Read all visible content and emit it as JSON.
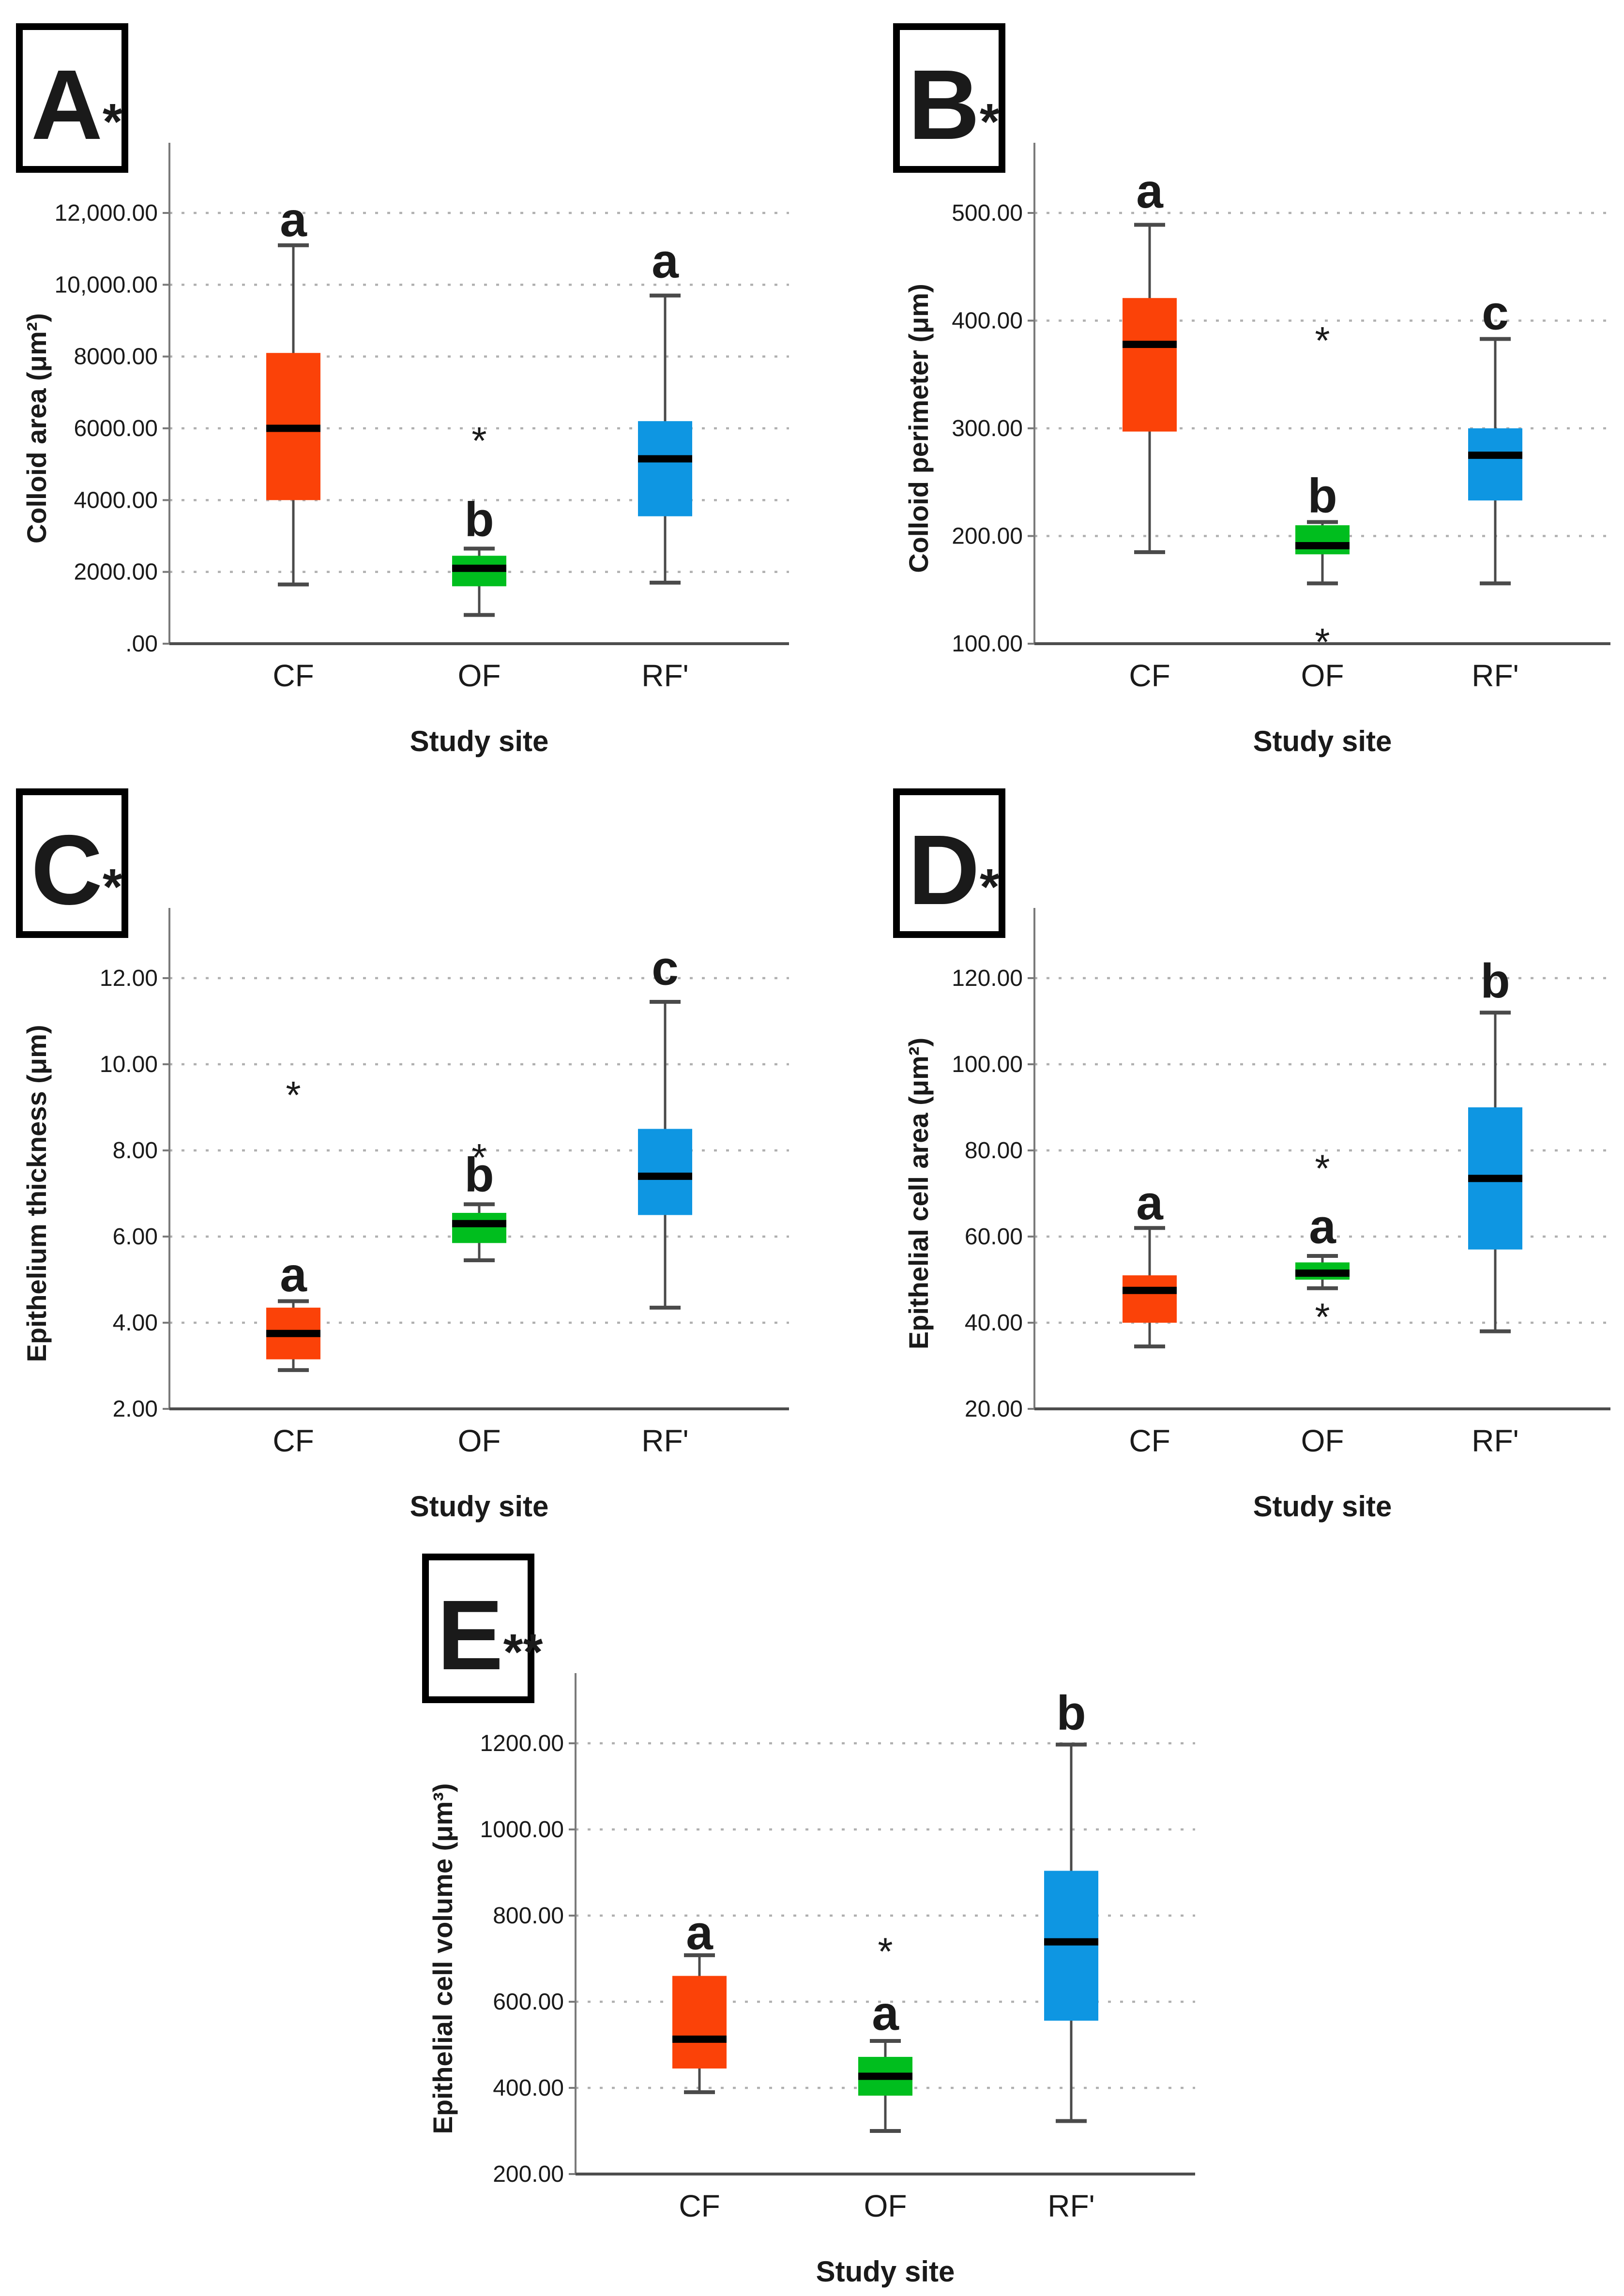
{
  "figure": {
    "background": "#ffffff",
    "x_axis_title": "Study site",
    "categories": [
      "CF",
      "OF",
      "RF'"
    ],
    "colors": {
      "cf_box": "#FB4208",
      "of_box": "#00BE1E",
      "rf_box": "#0E96E2",
      "median": "#000000",
      "whisker": "#4a4a4a",
      "gridline": "#b0b0b0",
      "y_axis": "#7a7a7a",
      "x_axis": "#4d4d4d",
      "text": "#1a1a1a"
    }
  },
  "chart_data": [
    {
      "type": "box",
      "panel": "A",
      "panel_label": "A",
      "significance": "*",
      "ylabel": "Colloid area (μm²)",
      "xlabel": "Study site",
      "ylim": [
        0,
        12000
      ],
      "grid": true,
      "ytick_values": [
        0,
        2000,
        4000,
        6000,
        8000,
        10000,
        12000
      ],
      "ytick_labels": [
        ".00",
        "2000.00",
        "4000.00",
        "6000.00",
        "8000.00",
        "10,000.00",
        "12,000.00"
      ],
      "boxes": [
        {
          "category": "CF",
          "color": "#FB4208",
          "letter": "a",
          "letter_y": 11350,
          "whisker_low": 1650,
          "q1": 4000,
          "median": 6000,
          "q3": 8100,
          "whisker_high": 11100,
          "outliers": []
        },
        {
          "category": "OF",
          "color": "#00BE1E",
          "letter": "b",
          "letter_y": 3000,
          "whisker_low": 800,
          "q1": 1600,
          "median": 2100,
          "q3": 2450,
          "whisker_high": 2650,
          "outliers": [
            5850
          ]
        },
        {
          "category": "RF'",
          "color": "#0E96E2",
          "letter": "a",
          "letter_y": 10200,
          "whisker_low": 1700,
          "q1": 3550,
          "median": 5150,
          "q3": 6200,
          "whisker_high": 9700,
          "outliers": []
        }
      ]
    },
    {
      "type": "box",
      "panel": "B",
      "panel_label": "B",
      "significance": "*",
      "ylabel": "Colloid perimeter (μm)",
      "xlabel": "Study site",
      "ylim": [
        100,
        500
      ],
      "grid": true,
      "ytick_values": [
        100,
        200,
        300,
        400,
        500
      ],
      "ytick_labels": [
        "100.00",
        "200.00",
        "300.00",
        "400.00",
        "500.00"
      ],
      "boxes": [
        {
          "category": "CF",
          "color": "#FB4208",
          "letter": "a",
          "letter_y": 505,
          "whisker_low": 185,
          "q1": 297,
          "median": 378,
          "q3": 421,
          "whisker_high": 489,
          "outliers": []
        },
        {
          "category": "OF",
          "color": "#00BE1E",
          "letter": "b",
          "letter_y": 222,
          "whisker_low": 156,
          "q1": 183,
          "median": 191,
          "q3": 210,
          "whisker_high": 213,
          "outliers": [
            388,
            108
          ]
        },
        {
          "category": "RF'",
          "color": "#0E96E2",
          "letter": "c",
          "letter_y": 392,
          "whisker_low": 156,
          "q1": 233,
          "median": 275,
          "q3": 300,
          "whisker_high": 383,
          "outliers": []
        }
      ]
    },
    {
      "type": "box",
      "panel": "C",
      "panel_label": "C",
      "significance": "*",
      "ylabel": "Epithelium thickness (μm)",
      "xlabel": "Study site",
      "ylim": [
        2,
        12
      ],
      "grid": true,
      "ytick_values": [
        2,
        4,
        6,
        8,
        10,
        12
      ],
      "ytick_labels": [
        "2.00",
        "4.00",
        "6.00",
        "8.00",
        "10.00",
        "12.00"
      ],
      "boxes": [
        {
          "category": "CF",
          "color": "#FB4208",
          "letter": "a",
          "letter_y": 4.73,
          "whisker_low": 2.9,
          "q1": 3.15,
          "median": 3.75,
          "q3": 4.35,
          "whisker_high": 4.5,
          "outliers": [
            9.45
          ]
        },
        {
          "category": "OF",
          "color": "#00BE1E",
          "letter": "b",
          "letter_y": 7.05,
          "whisker_low": 5.45,
          "q1": 5.85,
          "median": 6.3,
          "q3": 6.55,
          "whisker_high": 6.75,
          "outliers": [
            8.0
          ]
        },
        {
          "category": "RF'",
          "color": "#0E96E2",
          "letter": "c",
          "letter_y": 11.85,
          "whisker_low": 4.35,
          "q1": 6.5,
          "median": 7.4,
          "q3": 8.5,
          "whisker_high": 11.45,
          "outliers": []
        }
      ]
    },
    {
      "type": "box",
      "panel": "D",
      "panel_label": "D",
      "significance": "*",
      "ylabel": "Epithelial cell area (μm²)",
      "xlabel": "Study site",
      "ylim": [
        20,
        120
      ],
      "grid": true,
      "ytick_values": [
        20,
        40,
        60,
        80,
        100,
        120
      ],
      "ytick_labels": [
        "20.00",
        "40.00",
        "60.00",
        "80.00",
        "100.00",
        "120.00"
      ],
      "boxes": [
        {
          "category": "CF",
          "color": "#FB4208",
          "letter": "a",
          "letter_y": 64,
          "whisker_low": 34.5,
          "q1": 40,
          "median": 47.5,
          "q3": 51,
          "whisker_high": 62,
          "outliers": []
        },
        {
          "category": "OF",
          "color": "#00BE1E",
          "letter": "a",
          "letter_y": 58.5,
          "whisker_low": 48,
          "q1": 50,
          "median": 51.5,
          "q3": 54,
          "whisker_high": 55.5,
          "outliers": [
            77.5,
            43
          ]
        },
        {
          "category": "RF'",
          "color": "#0E96E2",
          "letter": "b",
          "letter_y": 115.5,
          "whisker_low": 38,
          "q1": 57,
          "median": 73.5,
          "q3": 90,
          "whisker_high": 112,
          "outliers": []
        }
      ]
    },
    {
      "type": "box",
      "panel": "E",
      "panel_label": "E",
      "significance": "**",
      "ylabel": "Epithelial cell volume (μm³)",
      "xlabel": "Study site",
      "ylim": [
        200,
        1200
      ],
      "grid": true,
      "ytick_values": [
        200,
        400,
        600,
        800,
        1000,
        1200
      ],
      "ytick_labels": [
        "200.00",
        "400.00",
        "600.00",
        "800.00",
        "1000.00",
        "1200.00"
      ],
      "boxes": [
        {
          "category": "CF",
          "color": "#FB4208",
          "letter": "a",
          "letter_y": 722,
          "whisker_low": 390,
          "q1": 445,
          "median": 513,
          "q3": 660,
          "whisker_high": 708,
          "outliers": []
        },
        {
          "category": "OF",
          "color": "#00BE1E",
          "letter": "a",
          "letter_y": 535,
          "whisker_low": 300,
          "q1": 382,
          "median": 427,
          "q3": 472,
          "whisker_high": 509,
          "outliers": [
            733
          ]
        },
        {
          "category": "RF'",
          "color": "#0E96E2",
          "letter": "b",
          "letter_y": 1232,
          "whisker_low": 323,
          "q1": 556,
          "median": 739,
          "q3": 904,
          "whisker_high": 1197,
          "outliers": []
        }
      ]
    }
  ]
}
